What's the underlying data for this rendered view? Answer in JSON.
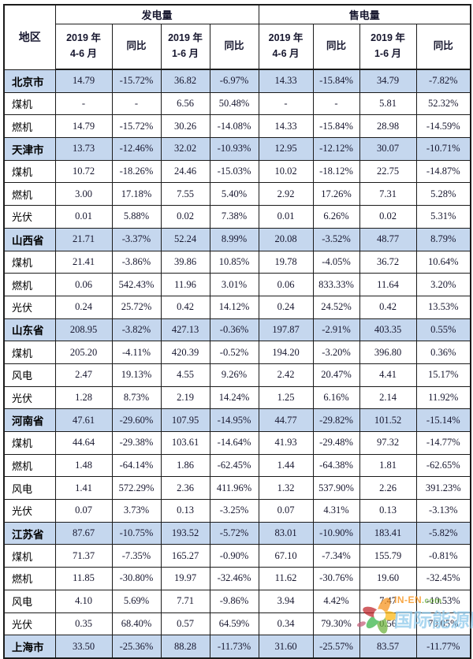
{
  "table": {
    "region_header": "地区",
    "groups": [
      {
        "label": "发电量"
      },
      {
        "label": "售电量"
      }
    ],
    "sub_headers": [
      "2019 年\n4-6 月",
      "同比",
      "2019 年\n1-6 月",
      "同比",
      "2019 年\n4-6 月",
      "同比",
      "2019 年\n1-6 月",
      "同比"
    ],
    "rows": [
      {
        "region": "北京市",
        "type": "province",
        "values": [
          "14.79",
          "-15.72%",
          "36.82",
          "-6.97%",
          "14.33",
          "-15.84%",
          "34.79",
          "-7.82%"
        ]
      },
      {
        "region": "煤机",
        "type": "sub",
        "values": [
          "-",
          "-",
          "6.56",
          "50.48%",
          "-",
          "-",
          "5.81",
          "52.32%"
        ]
      },
      {
        "region": "燃机",
        "type": "sub",
        "values": [
          "14.79",
          "-15.72%",
          "30.26",
          "-14.08%",
          "14.33",
          "-15.84%",
          "28.98",
          "-14.59%"
        ]
      },
      {
        "region": "天津市",
        "type": "province",
        "values": [
          "13.73",
          "-12.46%",
          "32.02",
          "-10.93%",
          "12.95",
          "-12.12%",
          "30.07",
          "-10.71%"
        ]
      },
      {
        "region": "煤机",
        "type": "sub",
        "values": [
          "10.72",
          "-18.26%",
          "24.46",
          "-15.03%",
          "10.02",
          "-18.12%",
          "22.75",
          "-14.87%"
        ]
      },
      {
        "region": "燃机",
        "type": "sub",
        "values": [
          "3.00",
          "17.18%",
          "7.55",
          "5.40%",
          "2.92",
          "17.26%",
          "7.31",
          "5.28%"
        ]
      },
      {
        "region": "光伏",
        "type": "sub",
        "values": [
          "0.01",
          "5.88%",
          "0.02",
          "7.38%",
          "0.01",
          "6.26%",
          "0.02",
          "5.31%"
        ]
      },
      {
        "region": "山西省",
        "type": "province",
        "values": [
          "21.71",
          "-3.37%",
          "52.24",
          "8.99%",
          "20.08",
          "-3.52%",
          "48.77",
          "8.79%"
        ]
      },
      {
        "region": "煤机",
        "type": "sub",
        "values": [
          "21.41",
          "-3.86%",
          "39.86",
          "10.85%",
          "19.78",
          "-4.05%",
          "36.72",
          "10.64%"
        ]
      },
      {
        "region": "燃机",
        "type": "sub",
        "values": [
          "0.06",
          "542.43%",
          "11.96",
          "3.01%",
          "0.06",
          "833.33%",
          "11.64",
          "3.20%"
        ]
      },
      {
        "region": "光伏",
        "type": "sub",
        "values": [
          "0.24",
          "25.72%",
          "0.42",
          "14.12%",
          "0.24",
          "24.52%",
          "0.42",
          "13.53%"
        ]
      },
      {
        "region": "山东省",
        "type": "province",
        "values": [
          "208.95",
          "-3.82%",
          "427.13",
          "-0.36%",
          "197.87",
          "-2.91%",
          "403.35",
          "0.55%"
        ]
      },
      {
        "region": "煤机",
        "type": "sub",
        "values": [
          "205.20",
          "-4.11%",
          "420.39",
          "-0.52%",
          "194.20",
          "-3.20%",
          "396.80",
          "0.36%"
        ]
      },
      {
        "region": "风电",
        "type": "sub",
        "values": [
          "2.47",
          "19.13%",
          "4.55",
          "9.26%",
          "2.42",
          "20.47%",
          "4.41",
          "15.17%"
        ]
      },
      {
        "region": "光伏",
        "type": "sub",
        "values": [
          "1.28",
          "8.73%",
          "2.19",
          "14.24%",
          "1.25",
          "6.16%",
          "2.14",
          "11.92%"
        ]
      },
      {
        "region": "河南省",
        "type": "province",
        "values": [
          "47.61",
          "-29.60%",
          "107.95",
          "-14.95%",
          "44.77",
          "-29.82%",
          "101.52",
          "-15.14%"
        ]
      },
      {
        "region": "煤机",
        "type": "sub",
        "values": [
          "44.64",
          "-29.38%",
          "103.61",
          "-14.64%",
          "41.93",
          "-29.48%",
          "97.32",
          "-14.77%"
        ]
      },
      {
        "region": "燃机",
        "type": "sub",
        "values": [
          "1.48",
          "-64.14%",
          "1.86",
          "-62.45%",
          "1.44",
          "-64.38%",
          "1.81",
          "-62.65%"
        ]
      },
      {
        "region": "风电",
        "type": "sub",
        "values": [
          "1.41",
          "572.29%",
          "2.36",
          "411.96%",
          "1.32",
          "537.90%",
          "2.26",
          "391.23%"
        ]
      },
      {
        "region": "光伏",
        "type": "sub",
        "values": [
          "0.07",
          "3.73%",
          "0.13",
          "-3.25%",
          "0.07",
          "4.31%",
          "0.13",
          "-3.13%"
        ]
      },
      {
        "region": "江苏省",
        "type": "province",
        "values": [
          "87.67",
          "-10.75%",
          "193.52",
          "-5.72%",
          "83.01",
          "-10.90%",
          "183.41",
          "-5.82%"
        ]
      },
      {
        "region": "煤机",
        "type": "sub",
        "values": [
          "71.37",
          "-7.35%",
          "165.27",
          "-0.90%",
          "67.10",
          "-7.34%",
          "155.79",
          "-0.81%"
        ]
      },
      {
        "region": "燃机",
        "type": "sub",
        "values": [
          "11.85",
          "-30.80%",
          "19.97",
          "-32.46%",
          "11.62",
          "-30.76%",
          "19.60",
          "-32.45%"
        ]
      },
      {
        "region": "风电",
        "type": "sub",
        "values": [
          "4.10",
          "5.69%",
          "7.71",
          "-9.86%",
          "3.94",
          "4.42%",
          "7.47",
          "-10.53%"
        ]
      },
      {
        "region": "光伏",
        "type": "sub",
        "values": [
          "0.35",
          "68.40%",
          "0.57",
          "64.59%",
          "0.34",
          "79.30%",
          "0.56",
          "70.05%"
        ]
      },
      {
        "region": "上海市",
        "type": "province",
        "values": [
          "33.50",
          "-25.36%",
          "88.28",
          "-11.73%",
          "31.60",
          "-25.57%",
          "83.57",
          "-11.77%"
        ]
      }
    ]
  },
  "watermark": {
    "site_main": "IN-EN",
    "site_tld": ".com",
    "name": "国际能源网"
  },
  "colors": {
    "row_highlight": "#c5d7ee",
    "border": "#1b1b1b",
    "watermark_blue": "#86c5e9",
    "watermark_orange": "#f7941e",
    "watermark_green": "#6db33f",
    "watermark_red": "#c1272d"
  }
}
